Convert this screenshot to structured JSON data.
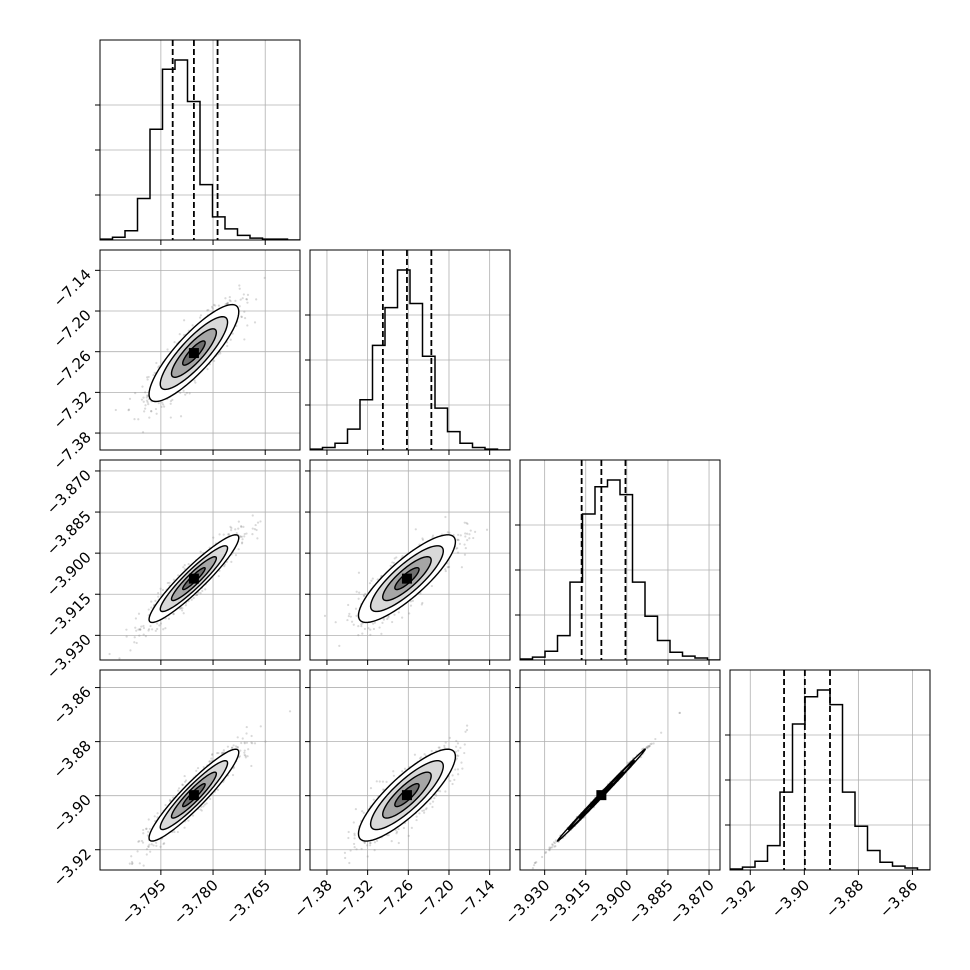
{
  "chart_data": {
    "type": "corner",
    "parameters": [
      {
        "ticks": [
          -3.795,
          -3.78,
          -3.765
        ],
        "tick_labels": [
          "−3.795",
          "−3.780",
          "−3.765"
        ],
        "range": [
          -3.8125,
          -3.755
        ],
        "quantiles": [
          -3.7916,
          -3.7855,
          -3.7787
        ],
        "histogram": [
          1,
          3,
          10,
          45,
          120,
          185,
          195,
          150,
          60,
          25,
          12,
          5,
          2,
          1,
          1,
          0
        ]
      },
      {
        "ticks": [
          -7.38,
          -7.32,
          -7.26,
          -7.2,
          -7.14
        ],
        "tick_labels": [
          "−7.38",
          "−7.32",
          "−7.26",
          "−7.20",
          "−7.14"
        ],
        "range": [
          -7.405,
          -7.11
        ],
        "quantiles": [
          -7.2975,
          -7.262,
          -7.226
        ],
        "histogram": [
          1,
          3,
          8,
          25,
          60,
          125,
          170,
          215,
          175,
          112,
          50,
          22,
          8,
          3,
          1,
          0
        ]
      },
      {
        "ticks": [
          -3.93,
          -3.915,
          -3.9,
          -3.885,
          -3.87
        ],
        "tick_labels": [
          "−3.930",
          "−3.915",
          "−3.900",
          "−3.885",
          "−3.870"
        ],
        "range": [
          -3.939,
          -3.866
        ],
        "quantiles": [
          -3.9165,
          -3.9093,
          -3.9005
        ],
        "histogram": [
          1,
          3,
          9,
          25,
          80,
          150,
          178,
          185,
          170,
          80,
          45,
          20,
          8,
          4,
          2,
          0
        ]
      },
      {
        "ticks": [
          -3.92,
          -3.9,
          -3.88,
          -3.86
        ],
        "tick_labels": [
          "−3.92",
          "−3.90",
          "−3.88",
          "−3.86"
        ],
        "range": [
          -3.9275,
          -3.8535
        ],
        "quantiles": [
          -3.9075,
          -3.8998,
          -3.8905
        ],
        "histogram": [
          1,
          3,
          9,
          25,
          80,
          150,
          178,
          185,
          170,
          80,
          45,
          20,
          8,
          4,
          2,
          0
        ]
      }
    ],
    "correlations": [
      [
        1.0,
        0.85,
        0.93,
        0.93
      ],
      [
        0.85,
        1.0,
        0.84,
        0.84
      ],
      [
        0.93,
        0.84,
        1.0,
        0.998
      ],
      [
        0.93,
        0.84,
        0.998,
        1.0
      ]
    ],
    "contour_levels": [
      "0.5σ",
      "1σ",
      "1.5σ",
      "2σ"
    ],
    "colors": {
      "samples": "#808080",
      "line": "#000000",
      "grid": "#b0b0b0"
    }
  }
}
